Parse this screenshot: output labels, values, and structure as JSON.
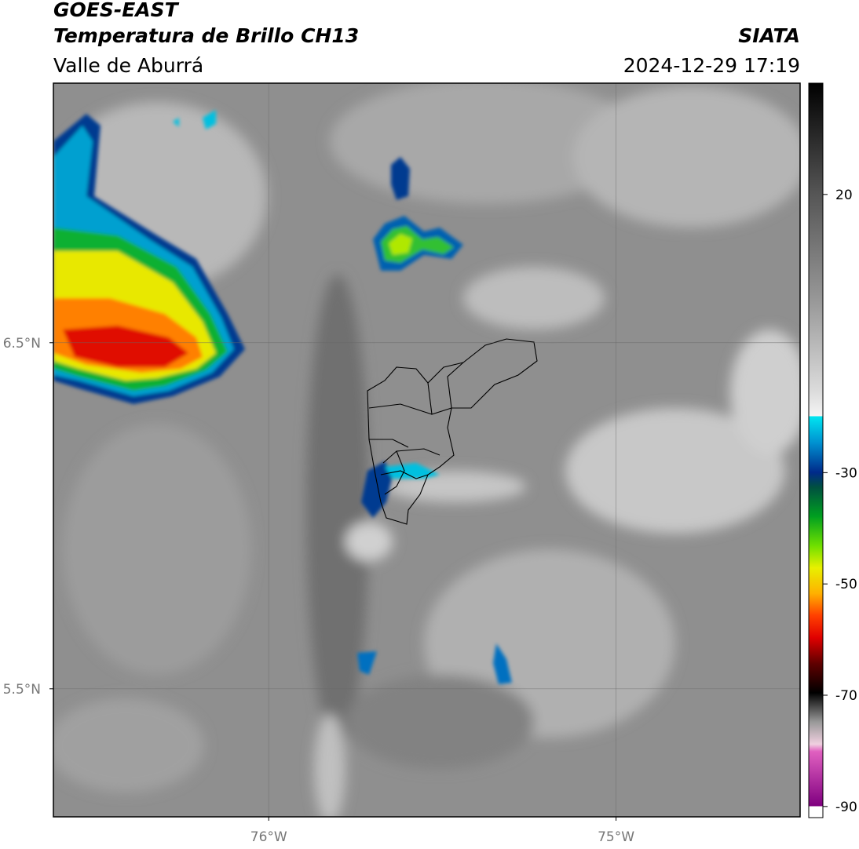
{
  "header": {
    "title": "GOES-EAST",
    "subtitle": "Temperatura de Brillo CH13",
    "region": "Valle de Aburrá",
    "source": "SIATA",
    "datetime": "2024-12-29 17:19"
  },
  "map": {
    "xlim": [
      -76.62,
      -74.47
    ],
    "ylim": [
      5.13,
      7.25
    ],
    "xticks": [
      {
        "value": -76,
        "label": "76°W"
      },
      {
        "value": -75,
        "label": "75°W"
      }
    ],
    "yticks": [
      {
        "value": 6.5,
        "label": "6.5°N"
      },
      {
        "value": 5.5,
        "label": "5.5°N"
      }
    ],
    "grid": true
  },
  "colorbar": {
    "lim": [
      -92,
      40
    ],
    "ticks": [
      20,
      -30,
      -50,
      -70,
      -90
    ]
  }
}
